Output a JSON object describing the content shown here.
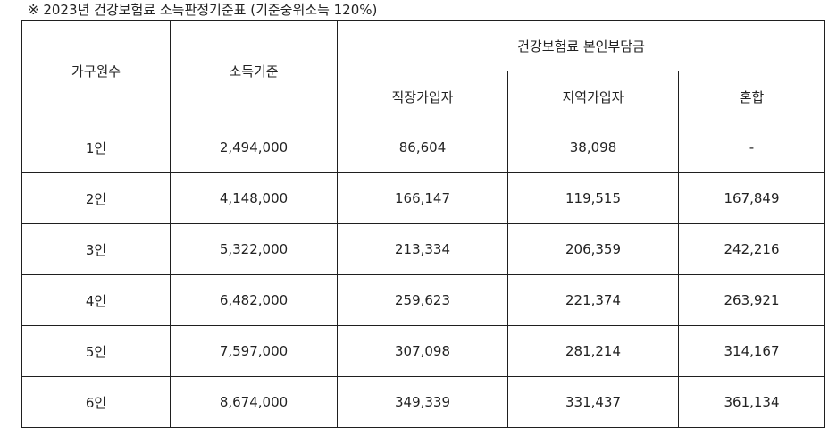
{
  "caption": "※ 2023년 건강보험료 소득판정기준표 (기준중위소득 120%)",
  "headers": {
    "household": "가구원수",
    "income": "소득기준",
    "premium_group": "건강보험료 본인부담금",
    "employee": "직장가입자",
    "regional": "지역가입자",
    "mixed": "혼합"
  },
  "rows": [
    {
      "household": "1인",
      "income": "2,494,000",
      "employee": "86,604",
      "regional": "38,098",
      "mixed": "-"
    },
    {
      "household": "2인",
      "income": "4,148,000",
      "employee": "166,147",
      "regional": "119,515",
      "mixed": "167,849"
    },
    {
      "household": "3인",
      "income": "5,322,000",
      "employee": "213,334",
      "regional": "206,359",
      "mixed": "242,216"
    },
    {
      "household": "4인",
      "income": "6,482,000",
      "employee": "259,623",
      "regional": "221,374",
      "mixed": "263,921"
    },
    {
      "household": "5인",
      "income": "7,597,000",
      "employee": "307,098",
      "regional": "281,214",
      "mixed": "314,167"
    },
    {
      "household": "6인",
      "income": "8,674,000",
      "employee": "349,339",
      "regional": "331,437",
      "mixed": "361,134"
    }
  ]
}
